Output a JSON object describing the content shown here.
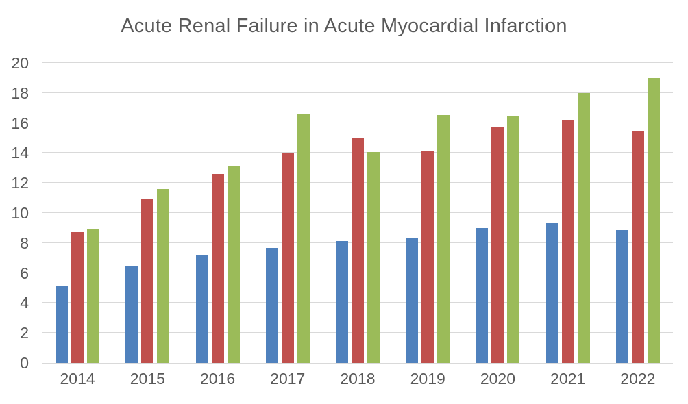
{
  "chart_data": {
    "type": "bar",
    "title": "Acute Renal Failure in Acute Myocardial Infarction",
    "categories": [
      "2014",
      "2015",
      "2016",
      "2017",
      "2018",
      "2019",
      "2020",
      "2021",
      "2022"
    ],
    "series": [
      {
        "name": "blue",
        "color": "#4F81BD",
        "values": [
          5.1,
          6.45,
          7.2,
          7.65,
          8.15,
          8.35,
          9.0,
          9.3,
          8.85
        ]
      },
      {
        "name": "red",
        "color": "#C0504D",
        "values": [
          8.7,
          10.9,
          12.6,
          14.0,
          15.0,
          14.15,
          15.75,
          16.2,
          15.5
        ]
      },
      {
        "name": "green",
        "color": "#9BBB59",
        "values": [
          8.95,
          11.6,
          13.1,
          16.6,
          14.05,
          16.55,
          16.45,
          18.0,
          19.0
        ]
      }
    ],
    "xlabel": "",
    "ylabel": "",
    "ylim": [
      0,
      20
    ],
    "ytick_step": 2,
    "yticks": [
      "0",
      "2",
      "4",
      "6",
      "8",
      "10",
      "12",
      "14",
      "16",
      "18",
      "20"
    ],
    "grid": true,
    "legend": false
  },
  "colors": {
    "text": "#595959",
    "gridline": "#D9D9D9",
    "background": "#FFFFFF"
  }
}
